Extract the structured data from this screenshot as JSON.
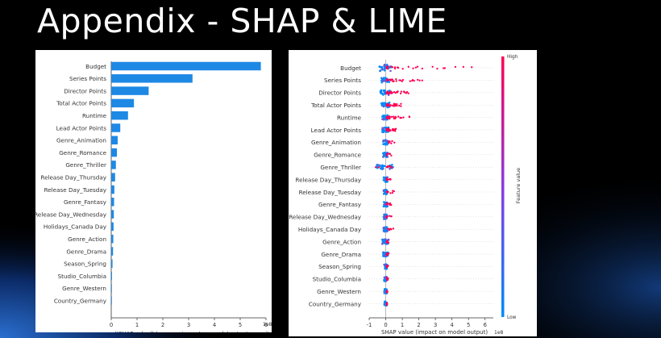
{
  "slide": {
    "title": "Appendix - SHAP & LIME"
  },
  "chart_data": [
    {
      "type": "bar",
      "orientation": "horizontal",
      "categories": [
        "Budget",
        "Series Points",
        "Director Points",
        "Total Actor Points",
        "Runtime",
        "Lead Actor Points",
        "Genre_Animation",
        "Genre_Romance",
        "Genre_Thriller",
        "Release Day_Thursday",
        "Release Day_Tuesday",
        "Genre_Fantasy",
        "Release Day_Wednesday",
        "Holidays_Canada Day",
        "Genre_Action",
        "Genre_Drama",
        "Season_Spring",
        "Studio_Columbia",
        "Genre_Western",
        "Country_Germany"
      ],
      "values": [
        5.8,
        3.15,
        1.45,
        0.88,
        0.65,
        0.35,
        0.25,
        0.22,
        0.18,
        0.15,
        0.12,
        0.11,
        0.1,
        0.09,
        0.08,
        0.07,
        0.05,
        0.03,
        0.02,
        0.01
      ],
      "xlim": [
        0,
        6
      ],
      "xticks": [
        "0",
        "1",
        "2",
        "3",
        "4",
        "5",
        "6"
      ],
      "xlabel": "mean(|SHAP value|) (average impact on model output magnitu",
      "scale_label": "1e8",
      "color": "#1e88e5"
    },
    {
      "type": "scatter",
      "subtype": "beeswarm",
      "categories": [
        "Budget",
        "Series Points",
        "Director Points",
        "Total Actor Points",
        "Runtime",
        "Lead Actor Points",
        "Genre_Animation",
        "Genre_Romance",
        "Genre_Thriller",
        "Release Day_Thursday",
        "Release Day_Tuesday",
        "Genre_Fantasy",
        "Release Day_Wednesday",
        "Holidays_Canada Day",
        "Genre_Action",
        "Genre_Drama",
        "Season_Spring",
        "Studio_Columbia",
        "Genre_Western",
        "Country_Germany"
      ],
      "xlim": [
        -1,
        6.5
      ],
      "xticks": [
        "-1",
        "0",
        "1",
        "2",
        "3",
        "4",
        "5",
        "6"
      ],
      "xlabel": "SHAP value (impact on model output)",
      "scale_label": "1e8",
      "colorbar": {
        "high_label": "High",
        "low_label": "Low",
        "axis_label": "Feature value",
        "high_color": "#ff0052",
        "low_color": "#008bfb"
      },
      "series": [
        {
          "name": "high feature value",
          "color": "#ff0052"
        },
        {
          "name": "low feature value",
          "color": "#008bfb"
        }
      ]
    }
  ]
}
